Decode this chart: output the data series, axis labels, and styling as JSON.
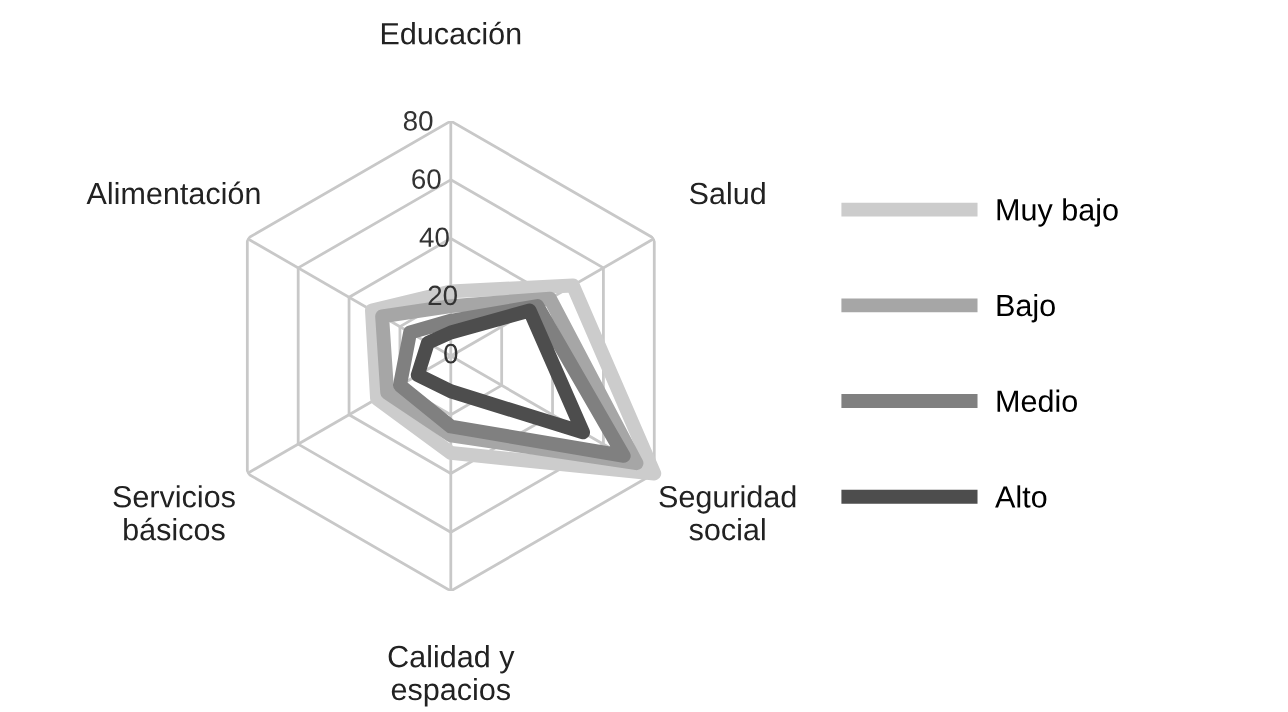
{
  "chart_data": {
    "type": "radar",
    "categories": [
      "Educación",
      "Salud",
      "Seguridad\nsocial",
      "Calidad y\nespacios",
      "Servicios\nbásicos",
      "Alimentación"
    ],
    "ylim": [
      0,
      80
    ],
    "yticks": [
      0,
      20,
      40,
      60,
      80
    ],
    "grid": true,
    "legend": "right",
    "marker": "none",
    "line_style": "solid",
    "series": [
      {
        "name": "Muy bajo",
        "color": "#cccccc",
        "values": [
          22,
          48,
          80,
          33,
          29,
          31
        ]
      },
      {
        "name": "Bajo",
        "color": "#a6a6a6",
        "values": [
          17,
          39,
          73,
          27,
          25,
          27
        ]
      },
      {
        "name": "Medio",
        "color": "#808080",
        "values": [
          12,
          34,
          68,
          24,
          20,
          16
        ]
      },
      {
        "name": "Alto",
        "color": "#4d4d4d",
        "values": [
          8,
          31,
          52,
          12,
          13,
          9
        ]
      }
    ]
  }
}
